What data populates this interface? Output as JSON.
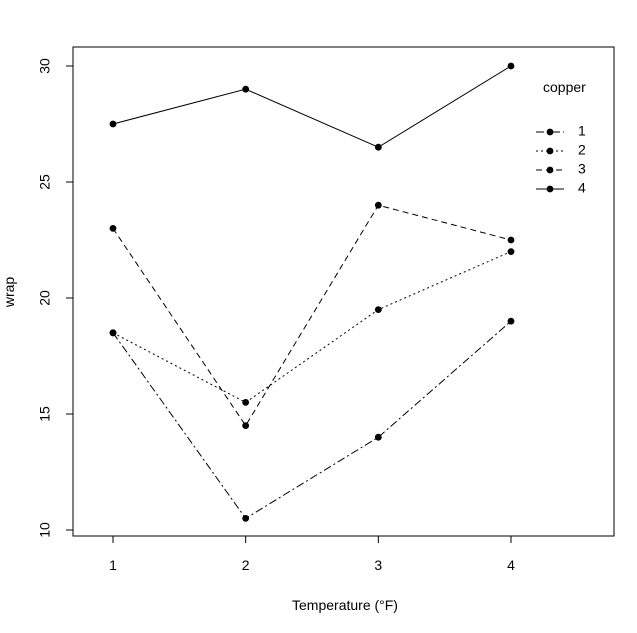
{
  "chart_data": {
    "type": "line",
    "x": [
      1,
      2,
      3,
      4
    ],
    "xlabel": "Temperature (°F)",
    "ylabel": "wrap",
    "xlim": [
      0.7,
      4.7
    ],
    "ylim": [
      10,
      30
    ],
    "xticks": [
      "1",
      "2",
      "3",
      "4"
    ],
    "yticks": [
      "10",
      "15",
      "20",
      "25",
      "30"
    ],
    "grid": false,
    "legend": {
      "title": "copper",
      "placement": "top-right",
      "entries": [
        "1",
        "2",
        "3",
        "4"
      ]
    },
    "series": [
      {
        "name": "1",
        "values": [
          18.5,
          10.5,
          14.0,
          19.0
        ],
        "dash": "8,3,2,3"
      },
      {
        "name": "2",
        "values": [
          18.5,
          15.5,
          19.5,
          22.0
        ],
        "dash": "2,3"
      },
      {
        "name": "3",
        "values": [
          23.0,
          14.5,
          24.0,
          22.5
        ],
        "dash": "6,4"
      },
      {
        "name": "4",
        "values": [
          27.5,
          29.0,
          26.5,
          30.0
        ],
        "dash": ""
      }
    ]
  }
}
